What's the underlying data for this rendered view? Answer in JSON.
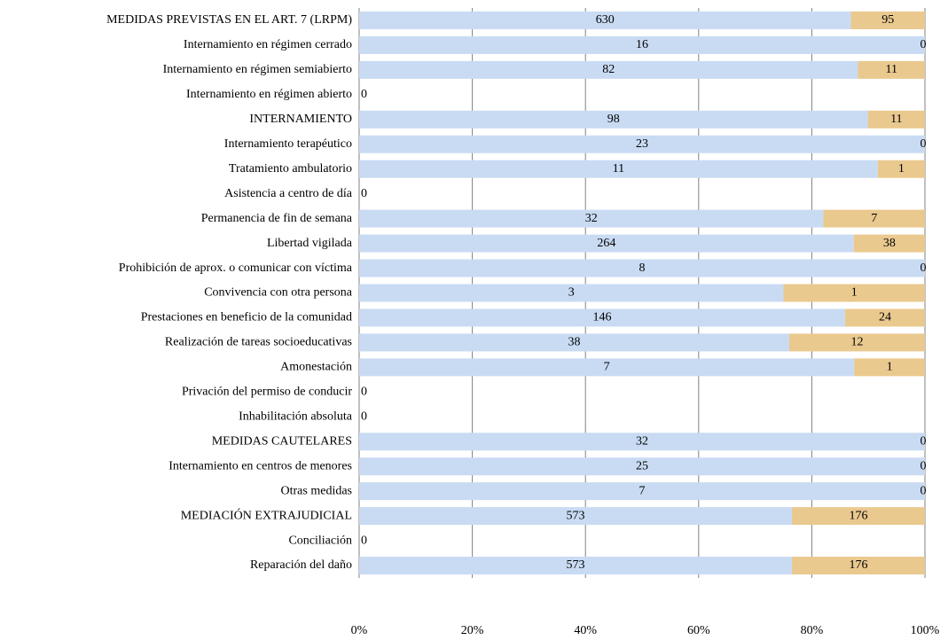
{
  "chart_data": {
    "type": "bar",
    "orientation": "horizontal",
    "stack": "percent",
    "categories": [
      "MEDIDAS PREVISTAS EN EL ART. 7 (LRPM)",
      "Internamiento en régimen cerrado",
      "Internamiento en régimen semiabierto",
      "Internamiento en régimen abierto",
      "INTERNAMIENTO",
      "Internamiento terapéutico",
      "Tratamiento ambulatorio",
      "Asistencia a centro de día",
      "Permanencia de fin de semana",
      "Libertad vigilada",
      "Prohibición de aprox. o comunicar con víctima",
      "Convivencia con otra persona",
      "Prestaciones en beneficio de la comunidad",
      "Realización de tareas socioeducativas",
      "Amonestación",
      "Privación del permiso de conducir",
      "Inhabilitación absoluta",
      "MEDIDAS CAUTELARES",
      "Internamiento en centros de menores",
      "Otras medidas",
      "MEDIACIÓN EXTRAJUDICIAL",
      "Conciliación",
      "Reparación del daño"
    ],
    "series": [
      {
        "color": "#c9dbf3",
        "values": [
          630,
          16,
          82,
          0,
          98,
          23,
          11,
          0,
          32,
          264,
          8,
          3,
          146,
          38,
          7,
          0,
          0,
          32,
          25,
          7,
          573,
          0,
          573
        ]
      },
      {
        "color": "#eac98f",
        "values": [
          95,
          0,
          11,
          0,
          11,
          0,
          1,
          0,
          7,
          38,
          0,
          1,
          24,
          12,
          1,
          0,
          0,
          0,
          0,
          0,
          176,
          0,
          176
        ]
      }
    ],
    "xlim": [
      0,
      100
    ],
    "xticks": [
      {
        "value": 0,
        "label": "0%"
      },
      {
        "value": 20,
        "label": "20%"
      },
      {
        "value": 40,
        "label": "40%"
      },
      {
        "value": 60,
        "label": "60%"
      },
      {
        "value": 80,
        "label": "80%"
      },
      {
        "value": 100,
        "label": "100%"
      }
    ],
    "grid": true
  }
}
